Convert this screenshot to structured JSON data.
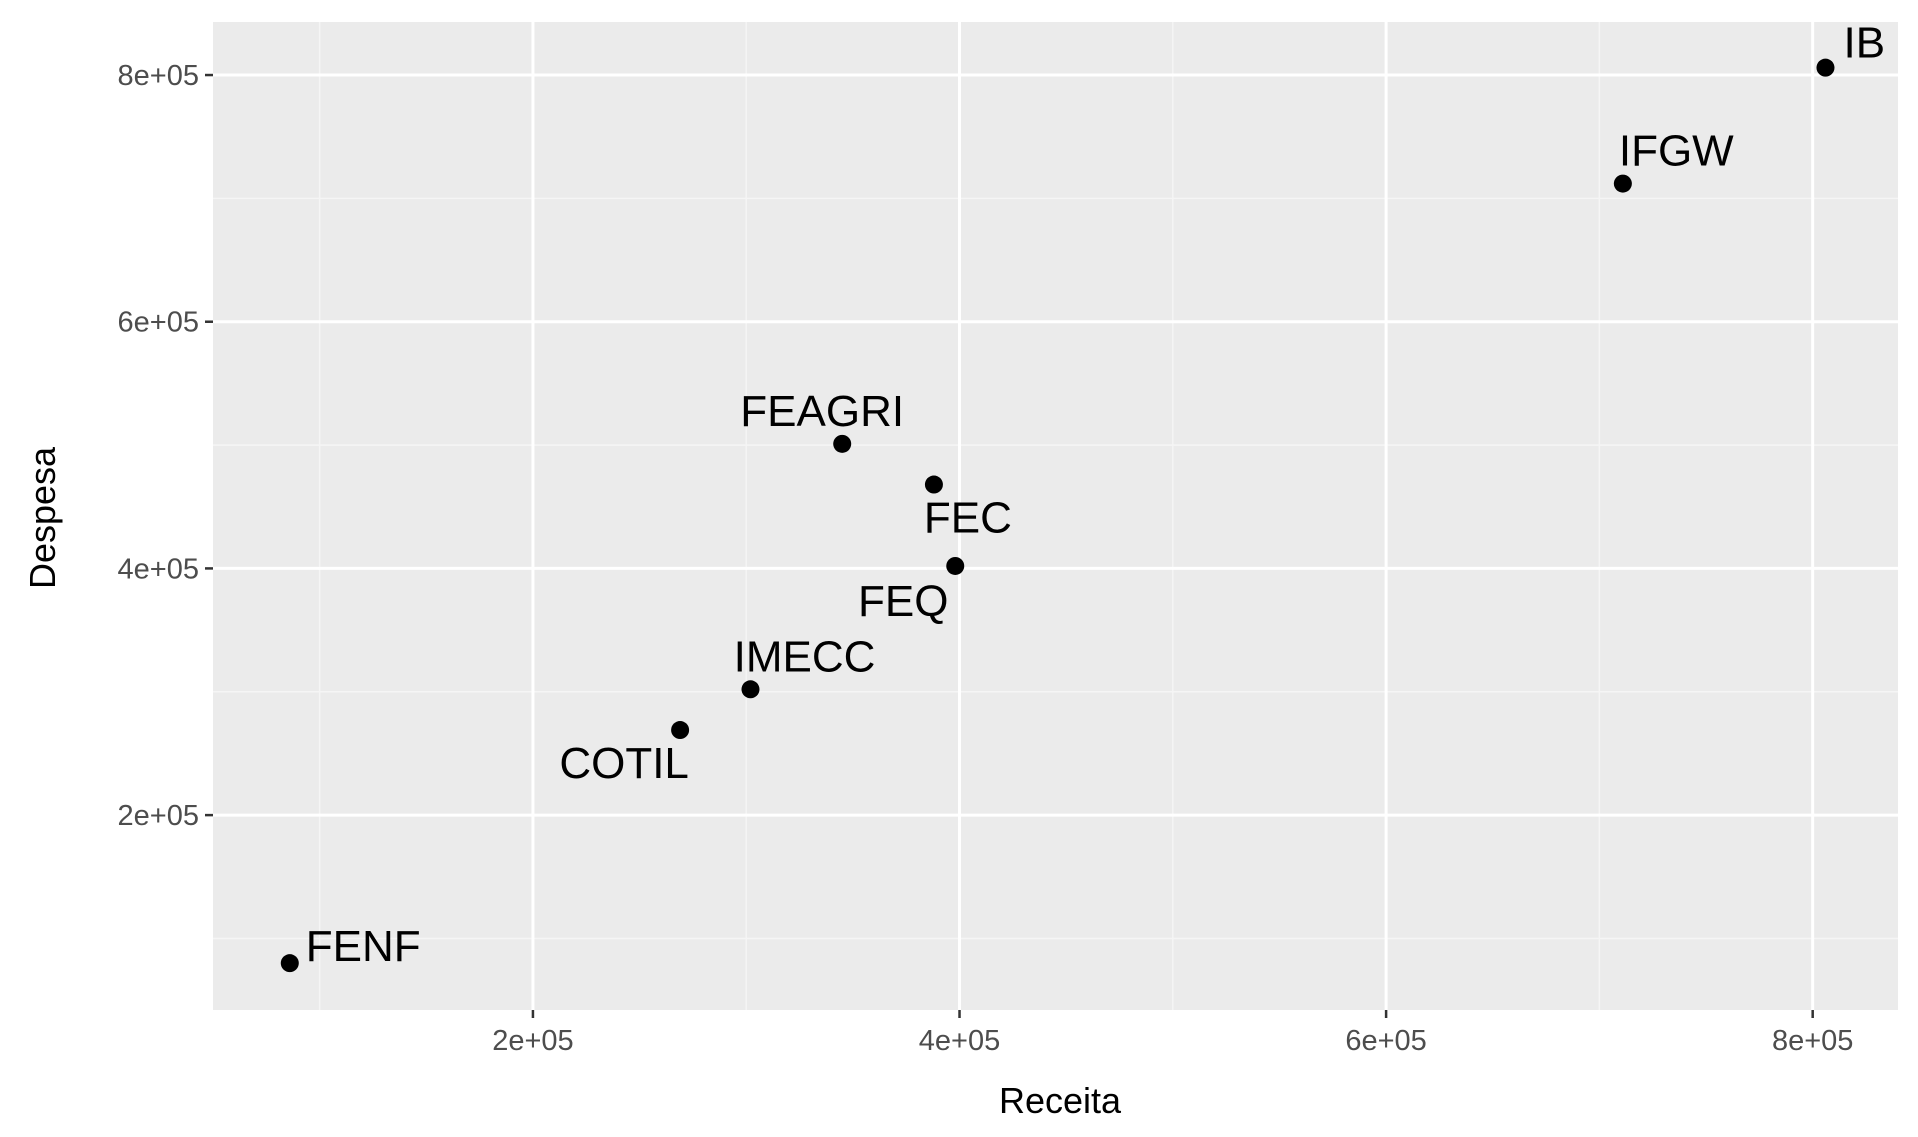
{
  "chart_data": {
    "type": "scatter",
    "title": "",
    "xlabel": "Receita",
    "ylabel": "Despesa",
    "xlim": [
      50000,
      840000
    ],
    "ylim": [
      42000,
      843000
    ],
    "x_ticks": [
      200000,
      400000,
      600000,
      800000
    ],
    "x_tick_labels": [
      "2e+05",
      "4e+05",
      "6e+05",
      "8e+05"
    ],
    "y_ticks": [
      200000,
      400000,
      600000,
      800000
    ],
    "y_tick_labels": [
      "2e+05",
      "4e+05",
      "6e+05",
      "8e+05"
    ],
    "grid": true,
    "colors": {
      "panel_background": "#ebebeb",
      "grid_major": "#ffffff",
      "grid_minor": "#f5f5f5",
      "point": "#000000",
      "tick_label": "#4d4d4d",
      "tick_mark": "#333333"
    },
    "points": [
      {
        "label": "IB",
        "x": 806000,
        "y": 806000
      },
      {
        "label": "IFGW",
        "x": 711000,
        "y": 712000
      },
      {
        "label": "FEAGRI",
        "x": 345000,
        "y": 501000
      },
      {
        "label": "FEC",
        "x": 388000,
        "y": 468000
      },
      {
        "label": "FEQ",
        "x": 398000,
        "y": 402000
      },
      {
        "label": "IMECC",
        "x": 302000,
        "y": 302000
      },
      {
        "label": "COTIL",
        "x": 269000,
        "y": 269000
      },
      {
        "label": "FENF",
        "x": 86000,
        "y": 80000
      }
    ]
  }
}
